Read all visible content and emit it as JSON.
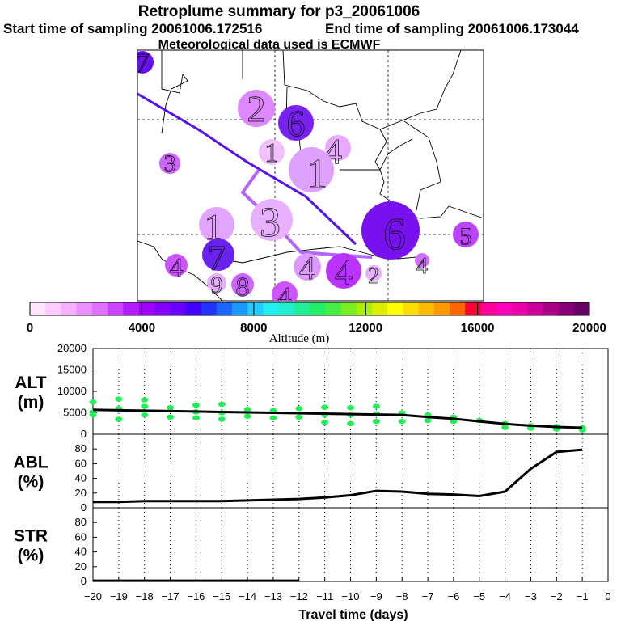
{
  "title": "Retroplume summary for p3_20061006",
  "subtitle_start": "Start time of sampling 20061006.172516",
  "subtitle_end": "End time of sampling 20061006.173044",
  "subtitle_met": "Meteorological data used is ECMWF",
  "colorbar": {
    "label": "Altitude (m)",
    "min": 0,
    "max": 20000,
    "tick_labels": [
      "0",
      "4000",
      "8000",
      "12000",
      "16000",
      "20000"
    ],
    "tick_values": [
      0,
      4000,
      8000,
      12000,
      16000,
      20000
    ],
    "colors": [
      "#ffe6ff",
      "#ffccff",
      "#f5b0ff",
      "#ec90ff",
      "#e070ff",
      "#cc44ff",
      "#b21cff",
      "#a000ff",
      "#8400ff",
      "#6a00ff",
      "#4400ff",
      "#2233ff",
      "#1a66ff",
      "#1a99ff",
      "#22ccff",
      "#22eeee",
      "#22eecc",
      "#22ee99",
      "#22ee66",
      "#44ee44",
      "#77ee22",
      "#aaee00",
      "#ddee00",
      "#ffff00",
      "#ffdd00",
      "#ffbb00",
      "#ff9900",
      "#ff6600",
      "#ff0033",
      "#ff0099",
      "#ff00bb",
      "#ee00aa",
      "#cc0099",
      "#aa0088",
      "#880077",
      "#660066"
    ]
  },
  "map": {
    "trajectory_color": "#5511ee",
    "plume_color": "#b366ff",
    "markers": [
      {
        "label": "7",
        "color": "#6611ee"
      },
      {
        "label": "2",
        "color": "#dd88ff"
      },
      {
        "label": "6",
        "color": "#7722ee"
      },
      {
        "label": "3",
        "color": "#cc66ff"
      },
      {
        "label": "1",
        "color": "#f0c0ff"
      },
      {
        "label": "4",
        "color": "#e8aaff"
      },
      {
        "label": "1",
        "color": "#e0a0ff"
      },
      {
        "label": "3",
        "color": "#e8b0ff"
      },
      {
        "label": "1",
        "color": "#e2a4ff"
      },
      {
        "label": "6",
        "color": "#7711ee"
      },
      {
        "label": "5",
        "color": "#bb44ff"
      },
      {
        "label": "7",
        "color": "#6a22ee"
      },
      {
        "label": "4",
        "color": "#cc55ff"
      },
      {
        "label": "4",
        "color": "#dd99ff"
      },
      {
        "label": "4",
        "color": "#bb33ff"
      },
      {
        "label": "9",
        "color": "#e6b0ff"
      },
      {
        "label": "8",
        "color": "#cc66ff"
      },
      {
        "label": "4",
        "color": "#cc55ff"
      },
      {
        "label": "2",
        "color": "#e8b2ff"
      },
      {
        "label": "4",
        "color": "#d070ff"
      }
    ]
  },
  "chart_data": [
    {
      "type": "scatter",
      "ylabel_line1": "ALT",
      "ylabel_line2": "(m)",
      "ylim": [
        0,
        20000
      ],
      "y_ticks": [
        "0",
        "5000",
        "10000",
        "15000",
        "20000"
      ],
      "x": [
        -20,
        -19,
        -18,
        -17,
        -16,
        -15,
        -14,
        -13,
        -12,
        -11,
        -10,
        -9,
        -8,
        -7,
        -6,
        -5,
        -4,
        -3,
        -2,
        -1
      ],
      "mean_line": [
        5700,
        5600,
        5500,
        5400,
        5300,
        5200,
        5100,
        5000,
        4900,
        4800,
        4700,
        4600,
        4500,
        4000,
        3600,
        3000,
        2400,
        2000,
        1700,
        1500
      ],
      "points": [
        [
          -20,
          5200
        ],
        [
          -20,
          7500
        ],
        [
          -20,
          4500
        ],
        [
          -19,
          8200
        ],
        [
          -19,
          6000
        ],
        [
          -19,
          3500
        ],
        [
          -18,
          8000
        ],
        [
          -18,
          6500
        ],
        [
          -18,
          4500
        ],
        [
          -17,
          6200
        ],
        [
          -17,
          4000
        ],
        [
          -16,
          6800
        ],
        [
          -16,
          5200
        ],
        [
          -16,
          3800
        ],
        [
          -15,
          7000
        ],
        [
          -15,
          5000
        ],
        [
          -15,
          3500
        ],
        [
          -14,
          5800
        ],
        [
          -14,
          4200
        ],
        [
          -13,
          5500
        ],
        [
          -13,
          3800
        ],
        [
          -12,
          6000
        ],
        [
          -12,
          4000
        ],
        [
          -11,
          6300
        ],
        [
          -11,
          4500
        ],
        [
          -11,
          2800
        ],
        [
          -10,
          6200
        ],
        [
          -10,
          4500
        ],
        [
          -10,
          2500
        ],
        [
          -9,
          6500
        ],
        [
          -9,
          4800
        ],
        [
          -9,
          3000
        ],
        [
          -8,
          5000
        ],
        [
          -8,
          3000
        ],
        [
          -7,
          4500
        ],
        [
          -7,
          3200
        ],
        [
          -6,
          4000
        ],
        [
          -6,
          3000
        ],
        [
          -5,
          3200
        ],
        [
          -4,
          2500
        ],
        [
          -4,
          1600
        ],
        [
          -3,
          2000
        ],
        [
          -3,
          1400
        ],
        [
          -2,
          1800
        ],
        [
          -2,
          1200
        ],
        [
          -1,
          1500
        ],
        [
          -1,
          1000
        ]
      ]
    },
    {
      "type": "line",
      "ylabel_line1": "ABL",
      "ylabel_line2": "(%)",
      "ylim": [
        0,
        100
      ],
      "y_ticks": [
        "0",
        "20",
        "40",
        "60",
        "80"
      ],
      "x": [
        -20,
        -19,
        -18,
        -17,
        -16,
        -15,
        -14,
        -13,
        -12,
        -11,
        -10,
        -9,
        -8,
        -7,
        -6,
        -5,
        -4,
        -3,
        -2,
        -1
      ],
      "values": [
        8,
        8,
        9,
        9,
        9,
        9,
        10,
        11,
        12,
        14,
        17,
        23,
        22,
        19,
        18,
        16,
        22,
        53,
        76,
        79
      ]
    },
    {
      "type": "line",
      "ylabel_line1": "STR",
      "ylabel_line2": "(%)",
      "ylim": [
        0,
        100
      ],
      "y_ticks": [
        "0",
        "20",
        "40",
        "60",
        "80"
      ],
      "x": [
        -20,
        -19,
        -18,
        -17,
        -16,
        -15,
        -14,
        -13,
        -12
      ],
      "values": [
        1,
        1,
        1,
        1,
        1,
        1,
        1,
        1,
        1
      ]
    }
  ],
  "xaxis": {
    "label": "Travel time (days)",
    "ticks": [
      "−20",
      "−19",
      "−18",
      "−17",
      "−16",
      "−15",
      "−14",
      "−13",
      "−12",
      "−11",
      "−10",
      "−9",
      "−8",
      "−7",
      "−6",
      "−5",
      "−4",
      "−3",
      "−2",
      "−1",
      "0"
    ],
    "tick_values": [
      -20,
      -19,
      -18,
      -17,
      -16,
      -15,
      -14,
      -13,
      -12,
      -11,
      -10,
      -9,
      -8,
      -7,
      -6,
      -5,
      -4,
      -3,
      -2,
      -1,
      0
    ],
    "range": [
      -20,
      0
    ]
  }
}
